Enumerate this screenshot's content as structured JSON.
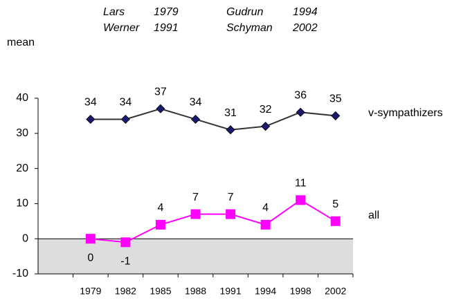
{
  "chart_data": {
    "type": "line",
    "annotations": [
      [
        "Lars",
        "1979"
      ],
      [
        "Werner",
        "1991"
      ],
      [
        "Gudrun",
        "1994"
      ],
      [
        "Schyman",
        "2002"
      ]
    ],
    "y_axis_label": "mean",
    "categories": [
      null,
      "1979",
      "1982",
      "1985",
      "1988",
      "1991",
      "1994",
      "1998",
      "2002"
    ],
    "series": [
      {
        "name": "v-sympathizers",
        "color": "#333333",
        "marker_color": "#1a1a6e",
        "marker": "diamond",
        "values": [
          null,
          34,
          34,
          37,
          34,
          31,
          32,
          36,
          35
        ]
      },
      {
        "name": "all",
        "color": "#ff00ff",
        "marker_color": "#ff00ff",
        "marker": "square",
        "values": [
          null,
          0,
          -1,
          4,
          7,
          7,
          4,
          11,
          5
        ]
      }
    ],
    "ylim": [
      -10,
      40
    ],
    "yticks": [
      -10,
      0,
      10,
      20,
      30,
      40
    ],
    "negative_shade": "#dddddd"
  }
}
